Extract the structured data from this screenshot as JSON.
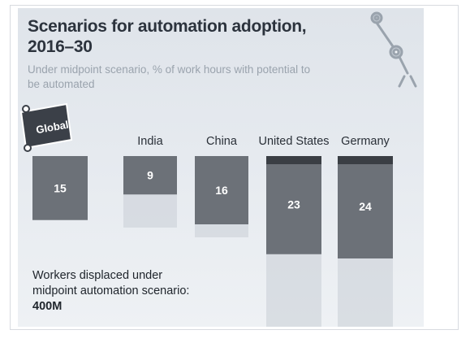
{
  "header": {
    "title": "Scenarios for automation adoption, 2016–30",
    "subtitle": "Under midpoint scenario, % of work hours with potential to be automated"
  },
  "footnote": {
    "text": "Workers displaced under midpoint automation scenario:",
    "value": "400M"
  },
  "badge": {
    "label": "Global",
    "icon": "wrench-icon"
  },
  "colors": {
    "bar_fill": "#6c7178",
    "bar_cap": "#3a3e44",
    "bar_ghost": "#c8ced6",
    "label_text": "#2a3038",
    "value_text": "#ffffff"
  },
  "chart_data": {
    "type": "bar",
    "title": "Scenarios for automation adoption, 2016–30",
    "subtitle": "Under midpoint scenario, % of work hours with potential to be automated",
    "categories": [
      "Global",
      "India",
      "China",
      "United States",
      "Germany"
    ],
    "values": [
      15,
      9,
      16,
      23,
      24
    ],
    "ylim": [
      0,
      30
    ],
    "grid": false
  }
}
